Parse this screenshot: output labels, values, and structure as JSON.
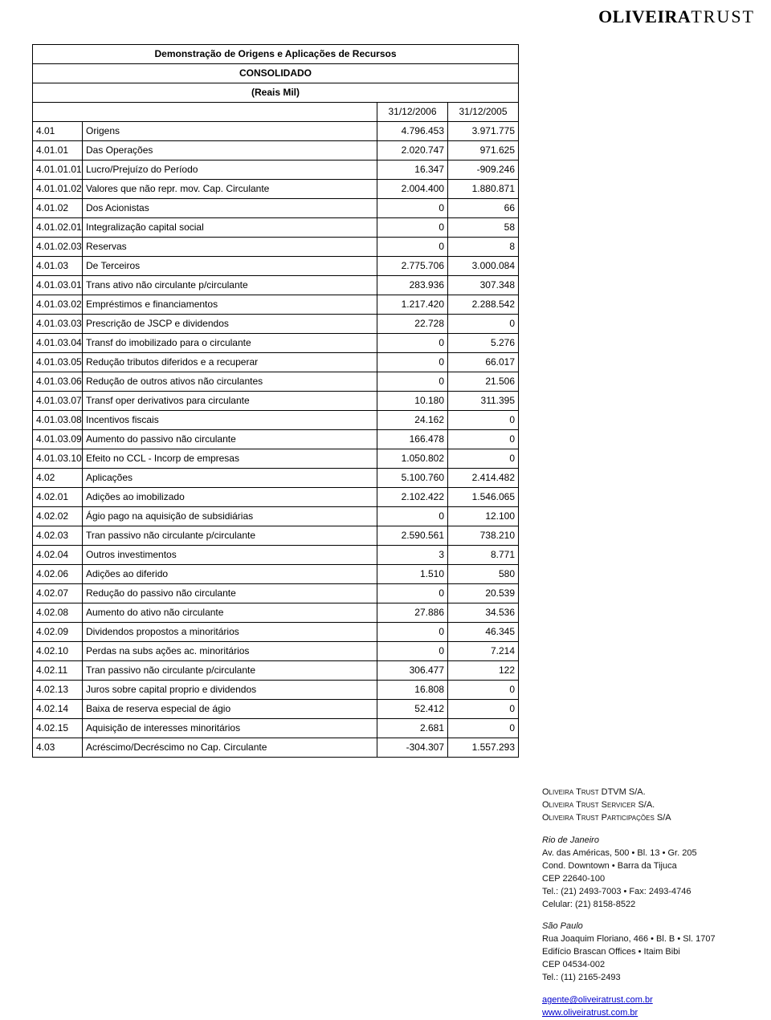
{
  "logo": {
    "left": "OLIVEIRA",
    "right": "TRUST"
  },
  "header": {
    "title1": "Demonstração de Origens e Aplicações de Recursos",
    "title2": "CONSOLIDADO",
    "title3": "(Reais Mil)",
    "col1": "31/12/2006",
    "col2": "31/12/2005"
  },
  "rows": [
    {
      "code": "4.01",
      "desc": "Origens",
      "v1": "4.796.453",
      "v2": "3.971.775"
    },
    {
      "code": "4.01.01",
      "desc": "Das Operações",
      "v1": "2.020.747",
      "v2": "971.625"
    },
    {
      "code": "4.01.01.01",
      "desc": "Lucro/Prejuízo do Período",
      "v1": "16.347",
      "v2": "-909.246"
    },
    {
      "code": "4.01.01.02",
      "desc": "Valores que não repr. mov. Cap. Circulante",
      "v1": "2.004.400",
      "v2": "1.880.871"
    },
    {
      "code": "4.01.02",
      "desc": "Dos Acionistas",
      "v1": "0",
      "v2": "66"
    },
    {
      "code": "4.01.02.01",
      "desc": "Integralização capital social",
      "v1": "0",
      "v2": "58"
    },
    {
      "code": "4.01.02.03",
      "desc": "Reservas",
      "v1": "0",
      "v2": "8"
    },
    {
      "code": "4.01.03",
      "desc": "De Terceiros",
      "v1": "2.775.706",
      "v2": "3.000.084"
    },
    {
      "code": "4.01.03.01",
      "desc": "Trans ativo não circulante p/circulante",
      "v1": "283.936",
      "v2": "307.348"
    },
    {
      "code": "4.01.03.02",
      "desc": "Empréstimos e financiamentos",
      "v1": "1.217.420",
      "v2": "2.288.542"
    },
    {
      "code": "4.01.03.03",
      "desc": "Prescrição de JSCP e dividendos",
      "v1": "22.728",
      "v2": "0"
    },
    {
      "code": "4.01.03.04",
      "desc": "Transf do imobilizado para o circulante",
      "v1": "0",
      "v2": "5.276"
    },
    {
      "code": "4.01.03.05",
      "desc": "Redução tributos diferidos e a recuperar",
      "v1": "0",
      "v2": "66.017"
    },
    {
      "code": "4.01.03.06",
      "desc": "Redução de outros ativos não circulantes",
      "v1": "0",
      "v2": "21.506"
    },
    {
      "code": "4.01.03.07",
      "desc": "Transf oper derivativos para circulante",
      "v1": "10.180",
      "v2": "311.395"
    },
    {
      "code": "4.01.03.08",
      "desc": "Incentivos fiscais",
      "v1": "24.162",
      "v2": "0"
    },
    {
      "code": "4.01.03.09",
      "desc": "Aumento do passivo não circulante",
      "v1": "166.478",
      "v2": "0"
    },
    {
      "code": "4.01.03.10",
      "desc": "Efeito no CCL - Incorp de empresas",
      "v1": "1.050.802",
      "v2": "0"
    },
    {
      "code": "4.02",
      "desc": "Aplicações",
      "v1": "5.100.760",
      "v2": "2.414.482"
    },
    {
      "code": "4.02.01",
      "desc": "Adições ao imobilizado",
      "v1": "2.102.422",
      "v2": "1.546.065"
    },
    {
      "code": "4.02.02",
      "desc": "Ágio pago na aquisição de subsidiárias",
      "v1": "0",
      "v2": "12.100"
    },
    {
      "code": "4.02.03",
      "desc": "Tran passivo não circulante p/circulante",
      "v1": "2.590.561",
      "v2": "738.210"
    },
    {
      "code": "4.02.04",
      "desc": "Outros investimentos",
      "v1": "3",
      "v2": "8.771"
    },
    {
      "code": "4.02.06",
      "desc": "Adições ao diferido",
      "v1": "1.510",
      "v2": "580"
    },
    {
      "code": "4.02.07",
      "desc": "Redução do passivo não circulante",
      "v1": "0",
      "v2": "20.539"
    },
    {
      "code": "4.02.08",
      "desc": "Aumento do ativo não circulante",
      "v1": "27.886",
      "v2": "34.536"
    },
    {
      "code": "4.02.09",
      "desc": "Dividendos propostos a minoritários",
      "v1": "0",
      "v2": "46.345"
    },
    {
      "code": "4.02.10",
      "desc": "Perdas na subs ações ac. minoritários",
      "v1": "0",
      "v2": "7.214"
    },
    {
      "code": "4.02.11",
      "desc": "Tran passivo não circulante p/circulante",
      "v1": "306.477",
      "v2": "122"
    },
    {
      "code": "4.02.13",
      "desc": "Juros sobre capital proprio e dividendos",
      "v1": "16.808",
      "v2": "0"
    },
    {
      "code": "4.02.14",
      "desc": "Baixa de reserva especial de ágio",
      "v1": "52.412",
      "v2": "0"
    },
    {
      "code": "4.02.15",
      "desc": "Aquisição de interesses minoritários",
      "v1": "2.681",
      "v2": "0"
    },
    {
      "code": "4.03",
      "desc": "Acréscimo/Decréscimo no Cap. Circulante",
      "v1": "-304.307",
      "v2": "1.557.293"
    }
  ],
  "footer": {
    "companies": [
      "Oliveira Trust DTVM S/A.",
      "Oliveira Trust Servicer S/A.",
      "Oliveira Trust  Participações S/A"
    ],
    "rj": {
      "city": "Rio de Janeiro",
      "addr1": "Av. das Américas, 500 • Bl. 13 • Gr. 205",
      "addr2": "Cond. Downtown • Barra da Tijuca",
      "cep": "CEP 22640-100",
      "tel": "Tel.: (21) 2493-7003 • Fax: 2493-4746",
      "cel": "Celular: (21) 8158-8522"
    },
    "sp": {
      "city": "São Paulo",
      "addr1": "Rua Joaquim Floriano, 466 • Bl. B • Sl. 1707",
      "addr2": "Edifício Brascan Offices • Itaim Bibi",
      "cep": "CEP 04534-002",
      "tel": "Tel.: (11) 2165-2493"
    },
    "links": {
      "email": "agente@oliveiratrust.com.br",
      "site": "www.oliveiratrust.com.br"
    }
  }
}
